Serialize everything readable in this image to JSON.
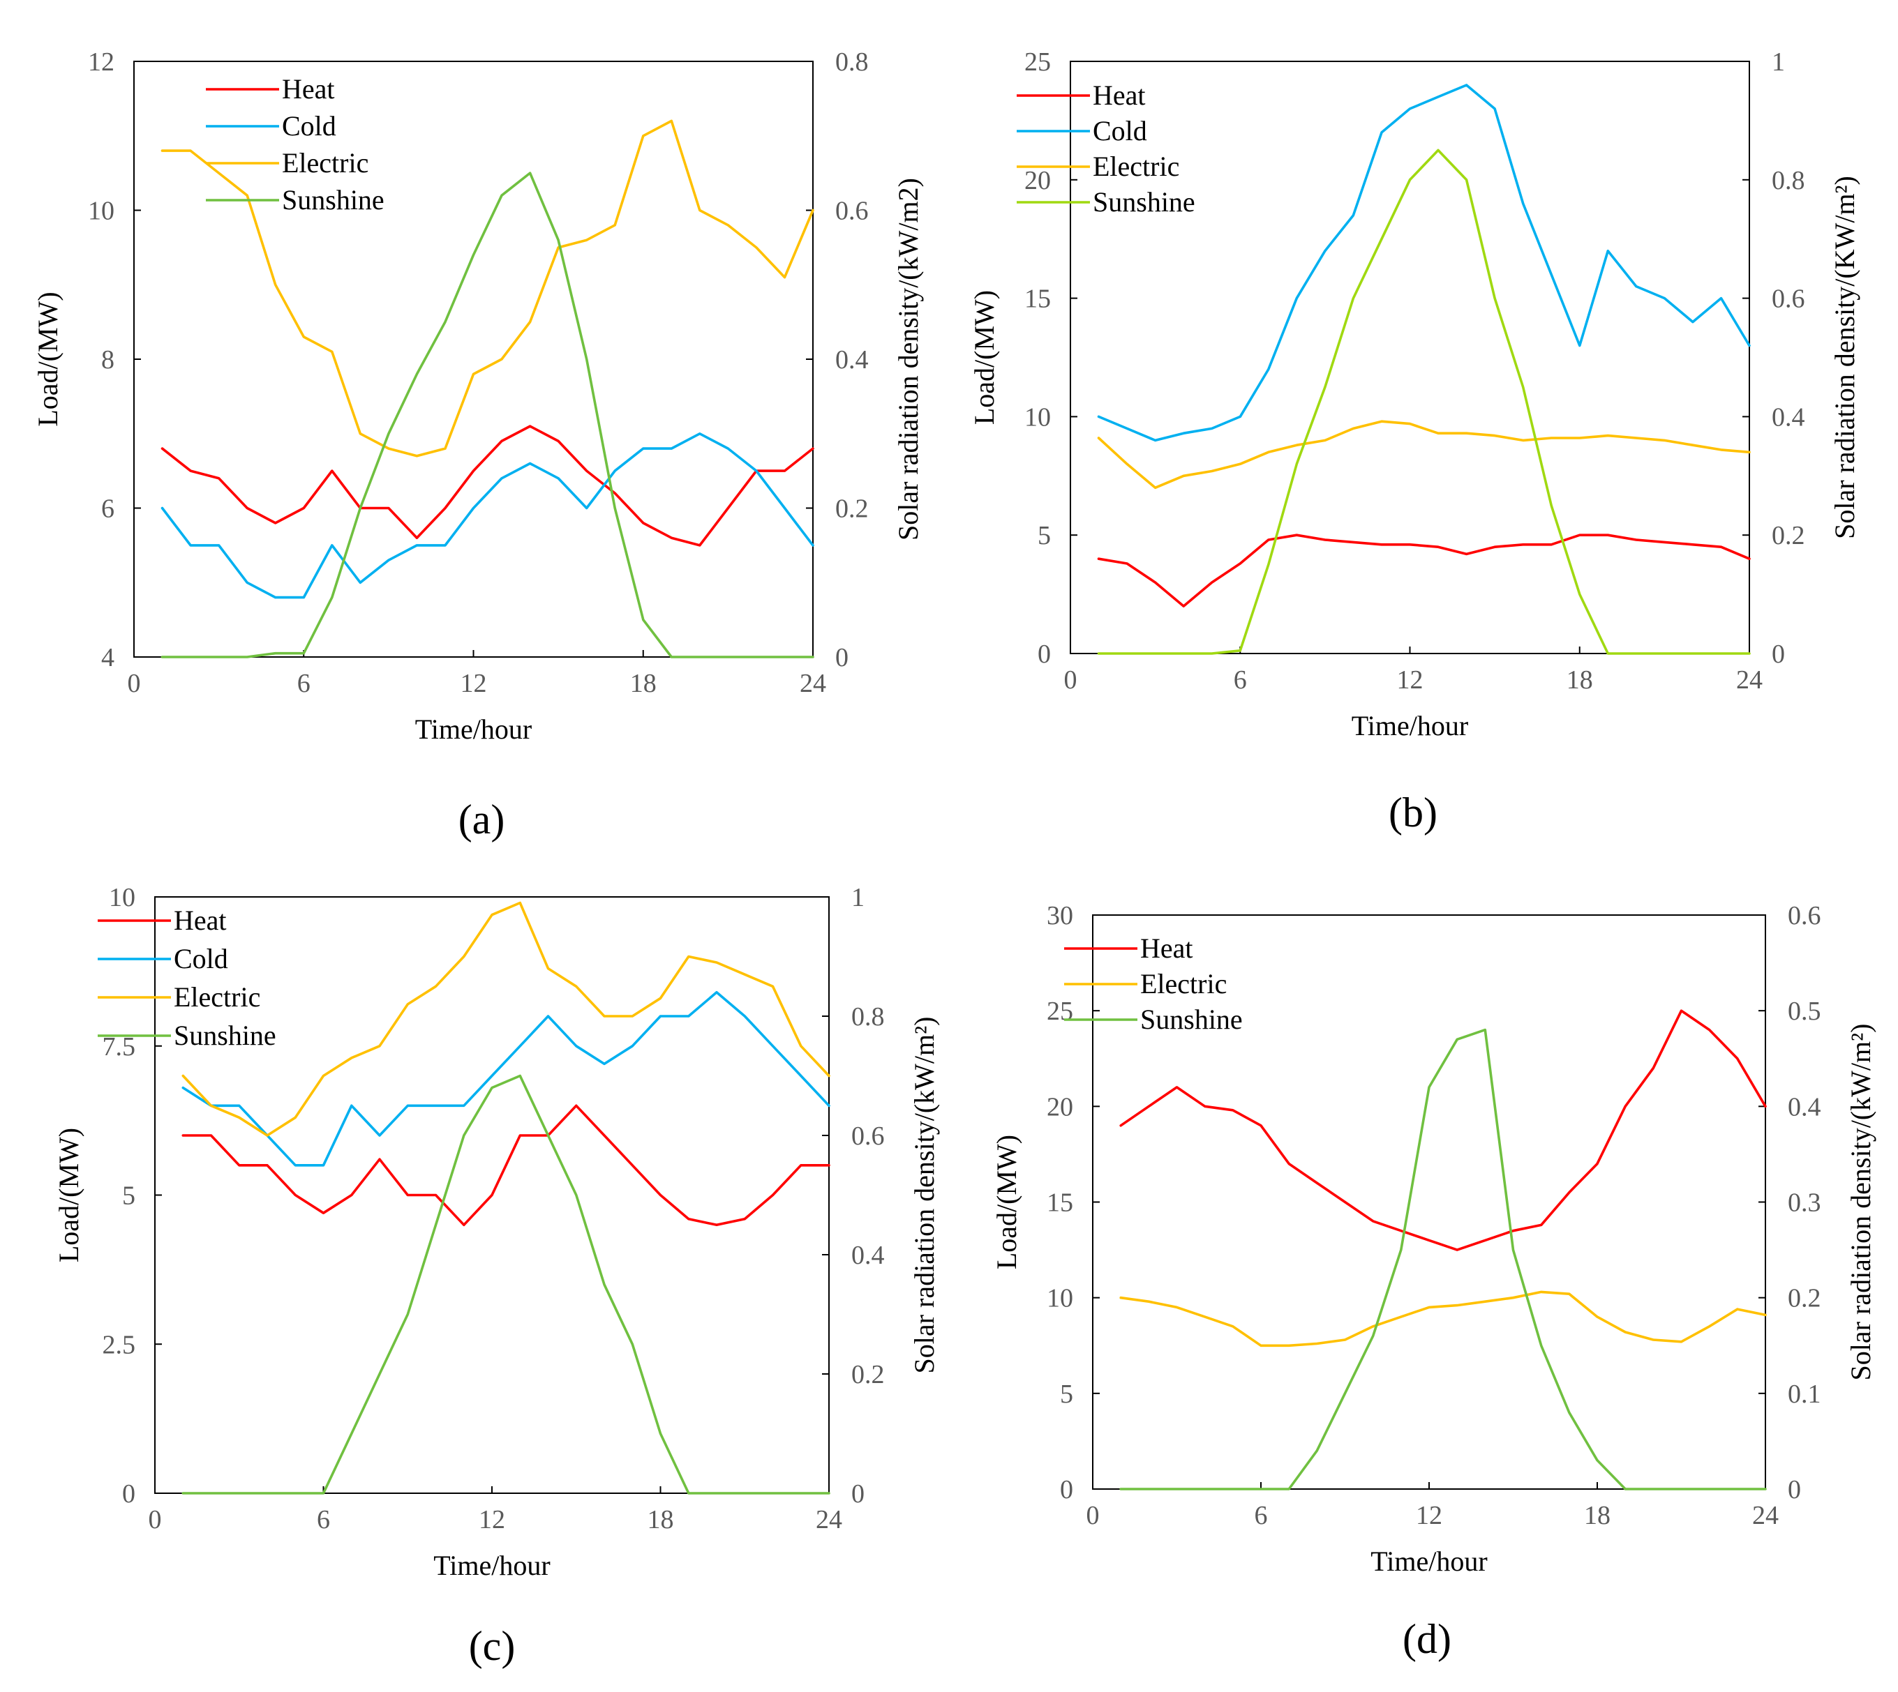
{
  "chart_data": [
    {
      "type": "line",
      "panel": "a",
      "panel_label": "(a)",
      "xlabel": "Time/hour",
      "ylabel": "Load/(MW)",
      "y2label": "Solar radiation density/(kW/m2)",
      "xlim": [
        0,
        24
      ],
      "ylim": [
        4,
        12
      ],
      "y2lim": [
        0,
        0.8
      ],
      "xticks": [
        "0",
        "6",
        "12",
        "18",
        "24"
      ],
      "yticks": [
        "4",
        "6",
        "8",
        "10",
        "12"
      ],
      "y2ticks": [
        "0",
        "0.2",
        "0.4",
        "0.6",
        "0.8"
      ],
      "x": [
        1,
        2,
        3,
        4,
        5,
        6,
        7,
        8,
        9,
        10,
        11,
        12,
        13,
        14,
        15,
        16,
        17,
        18,
        19,
        20,
        21,
        22,
        23,
        24
      ],
      "series": [
        {
          "name": "Heat",
          "color": "#ff0000",
          "axis": "left",
          "values": [
            6.8,
            6.5,
            6.4,
            6.0,
            5.8,
            6.0,
            6.5,
            6.0,
            6.0,
            5.6,
            6.0,
            6.5,
            6.9,
            7.1,
            6.9,
            6.5,
            6.2,
            5.8,
            5.6,
            5.5,
            6.0,
            6.5,
            6.5,
            6.8
          ]
        },
        {
          "name": "Cold",
          "color": "#00b0f0",
          "axis": "left",
          "values": [
            6.0,
            5.5,
            5.5,
            5.0,
            4.8,
            4.8,
            5.5,
            5.0,
            5.3,
            5.5,
            5.5,
            6.0,
            6.4,
            6.6,
            6.4,
            6.0,
            6.5,
            6.8,
            6.8,
            7.0,
            6.8,
            6.5,
            6.0,
            5.5
          ]
        },
        {
          "name": "Electric",
          "color": "#ffc000",
          "axis": "left",
          "values": [
            10.8,
            10.8,
            10.5,
            10.2,
            9.0,
            8.3,
            8.1,
            7.0,
            6.8,
            6.7,
            6.8,
            7.8,
            8.0,
            8.5,
            9.5,
            9.6,
            9.8,
            11.0,
            11.2,
            10.0,
            9.8,
            9.5,
            9.1,
            10.0
          ]
        },
        {
          "name": "Sunshine",
          "color": "#70c040",
          "axis": "right",
          "values": [
            0,
            0,
            0,
            0,
            0.005,
            0.005,
            0.08,
            0.2,
            0.3,
            0.38,
            0.45,
            0.54,
            0.62,
            0.65,
            0.56,
            0.4,
            0.2,
            0.05,
            0,
            0,
            0,
            0,
            0,
            0
          ]
        }
      ]
    },
    {
      "type": "line",
      "panel": "b",
      "panel_label": "(b)",
      "xlabel": "Time/hour",
      "ylabel": "Load/(MW)",
      "y2label": "Solar radiation density/(KW/m²)",
      "xlim": [
        0,
        24
      ],
      "ylim": [
        0,
        25
      ],
      "y2lim": [
        0,
        1
      ],
      "xticks": [
        "0",
        "6",
        "12",
        "18",
        "24"
      ],
      "yticks": [
        "0",
        "5",
        "10",
        "15",
        "20",
        "25"
      ],
      "y2ticks": [
        "0",
        "0.2",
        "0.4",
        "0.6",
        "0.8",
        "1"
      ],
      "x": [
        1,
        2,
        3,
        4,
        5,
        6,
        7,
        8,
        9,
        10,
        11,
        12,
        13,
        14,
        15,
        16,
        17,
        18,
        19,
        20,
        21,
        22,
        23,
        24
      ],
      "series": [
        {
          "name": "Heat",
          "color": "#ff0000",
          "axis": "left",
          "values": [
            4.0,
            3.8,
            3.0,
            2.0,
            3.0,
            3.8,
            4.8,
            5.0,
            4.8,
            4.7,
            4.6,
            4.6,
            4.5,
            4.2,
            4.5,
            4.6,
            4.6,
            5.0,
            5.0,
            4.8,
            4.7,
            4.6,
            4.5,
            4.0
          ]
        },
        {
          "name": "Cold",
          "color": "#00b0f0",
          "axis": "left",
          "values": [
            10.0,
            9.5,
            9.0,
            9.3,
            9.5,
            10.0,
            12.0,
            15.0,
            17.0,
            18.5,
            22.0,
            23.0,
            23.5,
            24.0,
            23.0,
            19.0,
            16.0,
            13.0,
            17.0,
            15.5,
            15.0,
            14.0,
            15.0,
            13.0
          ]
        },
        {
          "name": "Electric",
          "color": "#ffc000",
          "axis": "left",
          "values": [
            9.1,
            8.0,
            7.0,
            7.5,
            7.7,
            8.0,
            8.5,
            8.8,
            9.0,
            9.5,
            9.8,
            9.7,
            9.3,
            9.3,
            9.2,
            9.0,
            9.1,
            9.1,
            9.2,
            9.1,
            9.0,
            8.8,
            8.6,
            8.5
          ]
        },
        {
          "name": "Sunshine",
          "color": "#a0d911",
          "axis": "right",
          "values": [
            0,
            0,
            0,
            0,
            0,
            0.005,
            0.15,
            0.32,
            0.45,
            0.6,
            0.7,
            0.8,
            0.85,
            0.8,
            0.6,
            0.45,
            0.25,
            0.1,
            0,
            0,
            0,
            0,
            0,
            0
          ]
        }
      ]
    },
    {
      "type": "line",
      "panel": "c",
      "panel_label": "(c)",
      "xlabel": "Time/hour",
      "ylabel": "Load/(MW)",
      "y2label": "Solar radiation density/(kW/m²)",
      "xlim": [
        0,
        24
      ],
      "ylim": [
        0,
        10
      ],
      "y2lim": [
        0,
        1
      ],
      "xticks": [
        "0",
        "6",
        "12",
        "18",
        "24"
      ],
      "yticks": [
        "0",
        "2.5",
        "5",
        "7.5",
        "10"
      ],
      "y2ticks": [
        "0",
        "0.2",
        "0.4",
        "0.6",
        "0.8",
        "1"
      ],
      "x": [
        1,
        2,
        3,
        4,
        5,
        6,
        7,
        8,
        9,
        10,
        11,
        12,
        13,
        14,
        15,
        16,
        17,
        18,
        19,
        20,
        21,
        22,
        23,
        24
      ],
      "series": [
        {
          "name": "Heat",
          "color": "#ff0000",
          "axis": "left",
          "values": [
            6.0,
            6.0,
            5.5,
            5.5,
            5.0,
            4.7,
            5.0,
            5.6,
            5.0,
            5.0,
            4.5,
            5.0,
            6.0,
            6.0,
            6.5,
            6.0,
            5.5,
            5.0,
            4.6,
            4.5,
            4.6,
            5.0,
            5.5,
            5.5
          ]
        },
        {
          "name": "Cold",
          "color": "#00b0f0",
          "axis": "left",
          "values": [
            6.8,
            6.5,
            6.5,
            6.0,
            5.5,
            5.5,
            6.5,
            6.0,
            6.5,
            6.5,
            6.5,
            7.0,
            7.5,
            8.0,
            7.5,
            7.2,
            7.5,
            8.0,
            8.0,
            8.4,
            8.0,
            7.5,
            7.0,
            6.5
          ]
        },
        {
          "name": "Electric",
          "color": "#ffc000",
          "axis": "left",
          "values": [
            7.0,
            6.5,
            6.3,
            6.0,
            6.3,
            7.0,
            7.3,
            7.5,
            8.2,
            8.5,
            9.0,
            9.7,
            9.9,
            8.8,
            8.5,
            8.0,
            8.0,
            8.3,
            9.0,
            8.9,
            8.7,
            8.5,
            7.5,
            7.0
          ]
        },
        {
          "name": "Sunshine",
          "color": "#70c040",
          "axis": "right",
          "values": [
            0,
            0,
            0,
            0,
            0,
            0,
            0.1,
            0.2,
            0.3,
            0.45,
            0.6,
            0.68,
            0.7,
            0.6,
            0.5,
            0.35,
            0.25,
            0.1,
            0,
            0,
            0,
            0,
            0,
            0
          ]
        }
      ]
    },
    {
      "type": "line",
      "panel": "d",
      "panel_label": "(d)",
      "xlabel": "Time/hour",
      "ylabel": "Load/(MW)",
      "y2label": "Solar radiation density/(kW/m²)",
      "xlim": [
        0,
        24
      ],
      "ylim": [
        0,
        30
      ],
      "y2lim": [
        0,
        0.6
      ],
      "xticks": [
        "0",
        "6",
        "12",
        "18",
        "24"
      ],
      "yticks": [
        "0",
        "5",
        "10",
        "15",
        "20",
        "25",
        "30"
      ],
      "y2ticks": [
        "0",
        "0.1",
        "0.2",
        "0.3",
        "0.4",
        "0.5",
        "0.6"
      ],
      "x": [
        1,
        2,
        3,
        4,
        5,
        6,
        7,
        8,
        9,
        10,
        11,
        12,
        13,
        14,
        15,
        16,
        17,
        18,
        19,
        20,
        21,
        22,
        23,
        24
      ],
      "series": [
        {
          "name": "Heat",
          "color": "#ff0000",
          "axis": "left",
          "values": [
            19.0,
            20.0,
            21.0,
            20.0,
            19.8,
            19.0,
            17.0,
            16.0,
            15.0,
            14.0,
            13.5,
            13.0,
            12.5,
            13.0,
            13.5,
            13.8,
            15.5,
            17.0,
            20.0,
            22.0,
            25.0,
            24.0,
            22.5,
            20.0
          ]
        },
        {
          "name": "Electric",
          "color": "#ffc000",
          "axis": "left",
          "values": [
            10.0,
            9.8,
            9.5,
            9.0,
            8.5,
            7.5,
            7.5,
            7.6,
            7.8,
            8.5,
            9.0,
            9.5,
            9.6,
            9.8,
            10.0,
            10.3,
            10.2,
            9.0,
            8.2,
            7.8,
            7.7,
            8.5,
            9.4,
            9.1
          ]
        },
        {
          "name": "Sunshine",
          "color": "#70c040",
          "axis": "right",
          "values": [
            0,
            0,
            0,
            0,
            0,
            0,
            0,
            0.04,
            0.1,
            0.16,
            0.25,
            0.42,
            0.47,
            0.48,
            0.25,
            0.15,
            0.08,
            0.03,
            0,
            0,
            0,
            0,
            0,
            0
          ]
        }
      ]
    }
  ]
}
